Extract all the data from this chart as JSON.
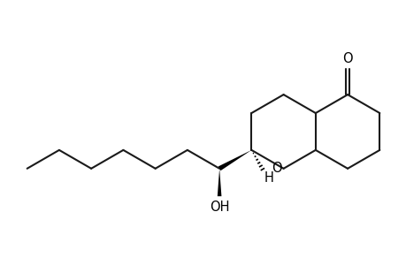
{
  "background": "#ffffff",
  "line_color": "#1a1a1a",
  "lw": 1.5,
  "wedge_color": "#000000",
  "text_color": "#000000",
  "figsize": [
    4.6,
    3.0
  ],
  "dpi": 100,
  "O_ketone": "O",
  "O_ring": "O",
  "OH_label": "OH",
  "H_label": "H"
}
